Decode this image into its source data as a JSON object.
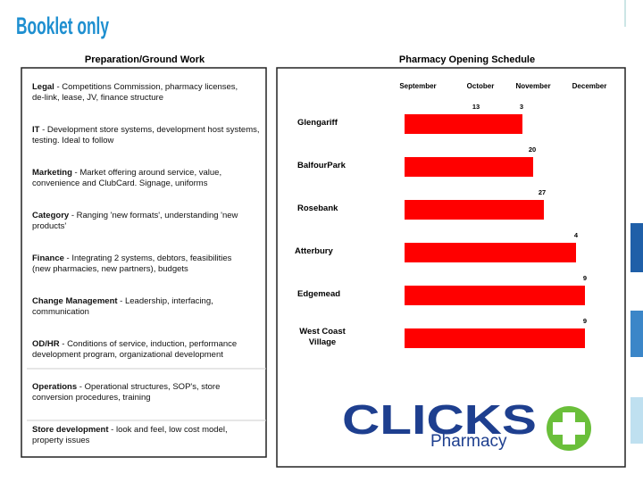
{
  "header": {
    "title": "Booklet only"
  },
  "preparation": {
    "title": "Preparation/Ground Work",
    "items": [
      {
        "lead": "Legal",
        "text": " - Competitions Commission, pharmacy licenses, de-link, lease, JV, finance structure"
      },
      {
        "lead": "IT",
        "text": " - Development store systems, development host systems, testing. Ideal to follow"
      },
      {
        "lead": "Marketing",
        "text": " - Market offering around service, value, convenience and ClubCard. Signage, uniforms"
      },
      {
        "lead": "Category",
        "text": " - Ranging 'new formats', understanding 'new products'"
      },
      {
        "lead": "Finance",
        "text": " - Integrating 2 systems, debtors, feasibilities (new pharmacies, new partners), budgets"
      },
      {
        "lead": "Change Management",
        "text": " - Leadership, interfacing, communication"
      },
      {
        "lead": "OD/HR",
        "text": " - Conditions of service, induction, performance development program, organizational development"
      },
      {
        "lead": "Operations",
        "text": " - Operational structures, SOP's, store conversion procedures, training"
      },
      {
        "lead": "Store development",
        "text": " - look and feel, low cost model, property issues"
      }
    ]
  },
  "schedule": {
    "title": "Pharmacy Opening Schedule",
    "months": [
      "September",
      "October",
      "November",
      "December"
    ],
    "stores": [
      {
        "name": "Glengariff",
        "labels": [
          "13",
          "3"
        ]
      },
      {
        "name": "BalfourPark",
        "labels": [
          "20"
        ]
      },
      {
        "name": "Rosebank",
        "labels": [
          "27"
        ]
      },
      {
        "name": "Atterbury",
        "labels": [
          "4"
        ]
      },
      {
        "name": "Edgemead",
        "labels": [
          "9"
        ]
      },
      {
        "name": "West Coast Village",
        "labels": [
          "9"
        ]
      }
    ]
  },
  "logo": {
    "brand": "CLICKS",
    "sub": "Pharmacy"
  }
}
